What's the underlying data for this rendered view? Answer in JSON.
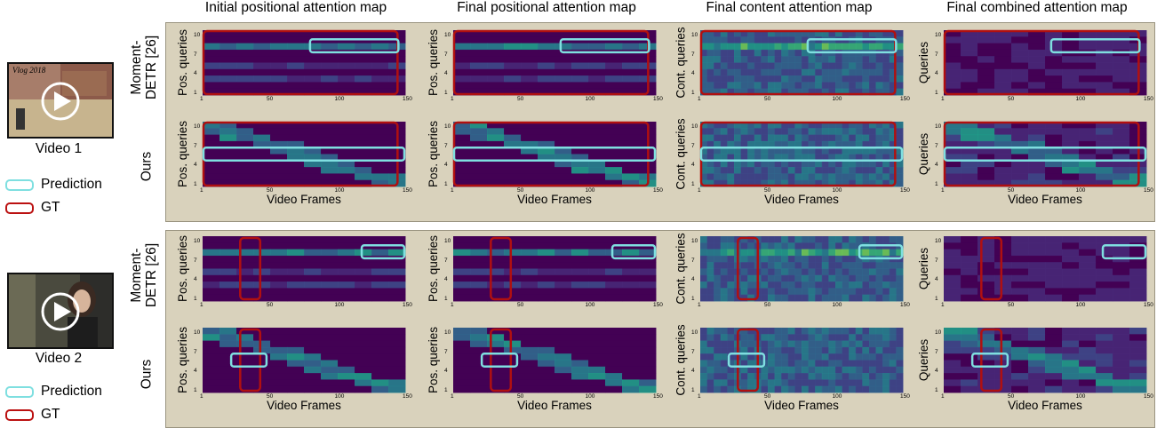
{
  "column_titles": [
    "Initial positional attention map",
    "Final positional attention map",
    "Final content attention map",
    "Final combined attention map"
  ],
  "videos": [
    {
      "label": "Video 1",
      "thumb_caption": "Vlog 2018"
    },
    {
      "label": "Video 2",
      "thumb_caption": ""
    }
  ],
  "legend": {
    "prediction": "Prediction",
    "gt": "GT"
  },
  "row_labels": {
    "baseline": "Moment-\nDETR [26]",
    "ours": "Ours"
  },
  "y_labels": [
    "Pos. queries",
    "Pos. queries",
    "Cont. queries",
    "Queries"
  ],
  "x_label": "Video Frames",
  "x_ticks": [
    "1",
    "50",
    "100",
    "150"
  ],
  "y_ticks": [
    "10",
    "7",
    "4",
    "1"
  ],
  "colors": {
    "pred_box": "#7fdfe0",
    "gt_box": "#b01010",
    "panel_bg": "#d9d2bc",
    "heatmap_base": "#440154"
  },
  "chart_data": [
    {
      "type": "heatmap",
      "group": "Video 1",
      "method": "Moment-DETR [26]",
      "map": "Initial positional attention map",
      "xlabel": "Video Frames",
      "ylabel": "Pos. queries",
      "xlim": [
        1,
        150
      ],
      "ylim": [
        1,
        10
      ],
      "prediction": [
        80,
        145
      ],
      "gt": [
        1,
        145
      ]
    },
    {
      "type": "heatmap",
      "group": "Video 1",
      "method": "Moment-DETR [26]",
      "map": "Final positional attention map",
      "xlabel": "Video Frames",
      "ylabel": "Pos. queries",
      "xlim": [
        1,
        150
      ],
      "ylim": [
        1,
        10
      ],
      "prediction": [
        80,
        145
      ],
      "gt": [
        1,
        145
      ]
    },
    {
      "type": "heatmap",
      "group": "Video 1",
      "method": "Moment-DETR [26]",
      "map": "Final content attention map",
      "xlabel": "Video Frames",
      "ylabel": "Cont. queries",
      "xlim": [
        1,
        150
      ],
      "ylim": [
        1,
        10
      ],
      "prediction": [
        80,
        145
      ],
      "gt": [
        1,
        145
      ]
    },
    {
      "type": "heatmap",
      "group": "Video 1",
      "method": "Moment-DETR [26]",
      "map": "Final combined attention map",
      "xlabel": "Video Frames",
      "ylabel": "Queries",
      "xlim": [
        1,
        150
      ],
      "ylim": [
        1,
        10
      ],
      "prediction": [
        80,
        145
      ],
      "gt": [
        1,
        145
      ]
    },
    {
      "type": "heatmap",
      "group": "Video 1",
      "method": "Ours",
      "map": "Initial positional attention map",
      "xlabel": "Video Frames",
      "ylabel": "Pos. queries",
      "xlim": [
        1,
        150
      ],
      "ylim": [
        1,
        10
      ],
      "prediction": [
        1,
        150
      ],
      "gt": [
        1,
        145
      ]
    },
    {
      "type": "heatmap",
      "group": "Video 1",
      "method": "Ours",
      "map": "Final positional attention map",
      "xlabel": "Video Frames",
      "ylabel": "Pos. queries",
      "xlim": [
        1,
        150
      ],
      "ylim": [
        1,
        10
      ],
      "prediction": [
        1,
        150
      ],
      "gt": [
        1,
        145
      ]
    },
    {
      "type": "heatmap",
      "group": "Video 1",
      "method": "Ours",
      "map": "Final content attention map",
      "xlabel": "Video Frames",
      "ylabel": "Cont. queries",
      "xlim": [
        1,
        150
      ],
      "ylim": [
        1,
        10
      ],
      "prediction": [
        1,
        150
      ],
      "gt": [
        1,
        145
      ]
    },
    {
      "type": "heatmap",
      "group": "Video 1",
      "method": "Ours",
      "map": "Final combined attention map",
      "xlabel": "Video Frames",
      "ylabel": "Queries",
      "xlim": [
        1,
        150
      ],
      "ylim": [
        1,
        10
      ],
      "prediction": [
        1,
        150
      ],
      "gt": [
        1,
        145
      ]
    },
    {
      "type": "heatmap",
      "group": "Video 2",
      "method": "Moment-DETR [26]",
      "map": "Initial positional attention map",
      "xlabel": "Video Frames",
      "ylabel": "Pos. queries",
      "xlim": [
        1,
        150
      ],
      "ylim": [
        1,
        10
      ],
      "prediction": [
        118,
        150
      ],
      "gt": [
        28,
        44
      ]
    },
    {
      "type": "heatmap",
      "group": "Video 2",
      "method": "Moment-DETR [26]",
      "map": "Final positional attention map",
      "xlabel": "Video Frames",
      "ylabel": "Pos. queries",
      "xlim": [
        1,
        150
      ],
      "ylim": [
        1,
        10
      ],
      "prediction": [
        118,
        150
      ],
      "gt": [
        28,
        44
      ]
    },
    {
      "type": "heatmap",
      "group": "Video 2",
      "method": "Moment-DETR [26]",
      "map": "Final content attention map",
      "xlabel": "Video Frames",
      "ylabel": "Cont. queries",
      "xlim": [
        1,
        150
      ],
      "ylim": [
        1,
        10
      ],
      "prediction": [
        118,
        150
      ],
      "gt": [
        28,
        44
      ]
    },
    {
      "type": "heatmap",
      "group": "Video 2",
      "method": "Moment-DETR [26]",
      "map": "Final combined attention map",
      "xlabel": "Video Frames",
      "ylabel": "Queries",
      "xlim": [
        1,
        150
      ],
      "ylim": [
        1,
        10
      ],
      "prediction": [
        118,
        150
      ],
      "gt": [
        28,
        44
      ]
    },
    {
      "type": "heatmap",
      "group": "Video 2",
      "method": "Ours",
      "map": "Initial positional attention map",
      "xlabel": "Video Frames",
      "ylabel": "Pos. queries",
      "xlim": [
        1,
        150
      ],
      "ylim": [
        1,
        10
      ],
      "prediction": [
        22,
        48
      ],
      "gt": [
        28,
        44
      ]
    },
    {
      "type": "heatmap",
      "group": "Video 2",
      "method": "Ours",
      "map": "Final positional attention map",
      "xlabel": "Video Frames",
      "ylabel": "Pos. queries",
      "xlim": [
        1,
        150
      ],
      "ylim": [
        1,
        10
      ],
      "prediction": [
        22,
        48
      ],
      "gt": [
        28,
        44
      ]
    },
    {
      "type": "heatmap",
      "group": "Video 2",
      "method": "Ours",
      "map": "Final content attention map",
      "xlabel": "Video Frames",
      "ylabel": "Cont. queries",
      "xlim": [
        1,
        150
      ],
      "ylim": [
        1,
        10
      ],
      "prediction": [
        22,
        48
      ],
      "gt": [
        28,
        44
      ]
    },
    {
      "type": "heatmap",
      "group": "Video 2",
      "method": "Ours",
      "map": "Final combined attention map",
      "xlabel": "Video Frames",
      "ylabel": "Queries",
      "xlim": [
        1,
        150
      ],
      "ylim": [
        1,
        10
      ],
      "prediction": [
        22,
        48
      ],
      "gt": [
        28,
        44
      ]
    }
  ]
}
